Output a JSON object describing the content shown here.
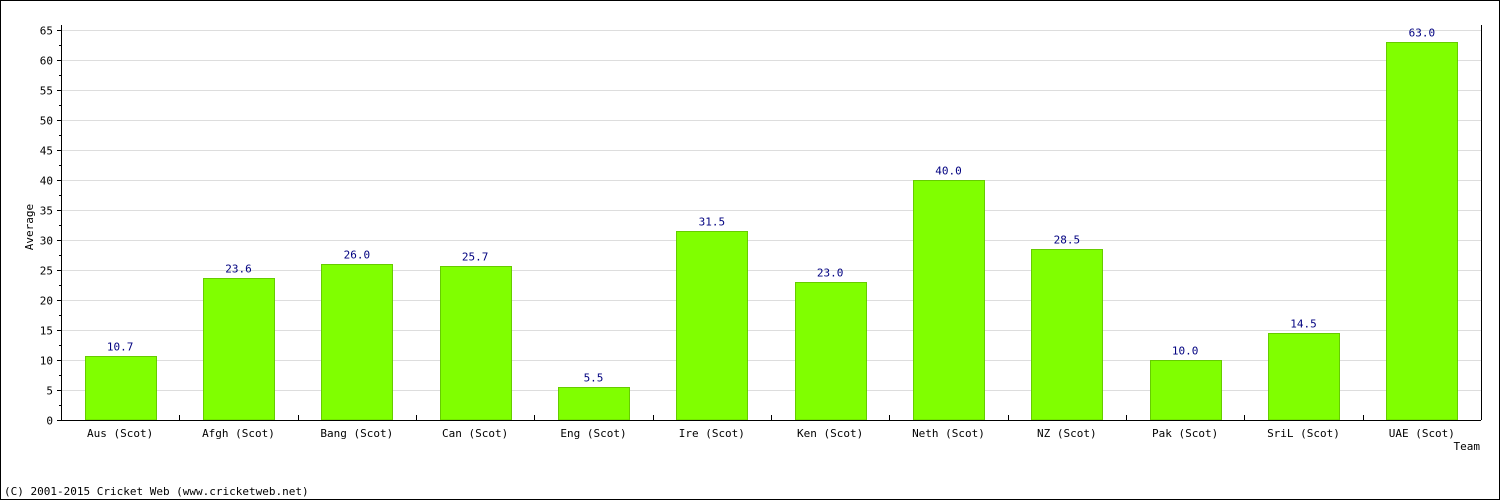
{
  "chart_data": {
    "type": "bar",
    "categories": [
      "Aus (Scot)",
      "Afgh (Scot)",
      "Bang (Scot)",
      "Can (Scot)",
      "Eng (Scot)",
      "Ire (Scot)",
      "Ken (Scot)",
      "Neth (Scot)",
      "NZ (Scot)",
      "Pak (Scot)",
      "SriL (Scot)",
      "UAE (Scot)"
    ],
    "values": [
      10.7,
      23.6,
      26.0,
      25.7,
      5.5,
      31.5,
      23.0,
      40.0,
      28.5,
      10.0,
      14.5,
      63.0
    ],
    "value_labels": [
      "10.7",
      "23.6",
      "26.0",
      "25.7",
      "5.5",
      "31.5",
      "23.0",
      "40.0",
      "28.5",
      "10.0",
      "14.5",
      "63.0"
    ],
    "ylabel": "Average",
    "xlabel": "Team",
    "ylim": [
      0,
      65
    ],
    "yticks": [
      "0",
      "5",
      "10",
      "15",
      "20",
      "25",
      "30",
      "35",
      "40",
      "45",
      "50",
      "55",
      "60",
      "65"
    ],
    "grid": true,
    "colors": {
      "bar": "#80ff00",
      "bar_edge": "#66cc00",
      "value_label": "#000080",
      "grid": "#dddddd"
    }
  },
  "footer": "(C) 2001-2015 Cricket Web (www.cricketweb.net)"
}
